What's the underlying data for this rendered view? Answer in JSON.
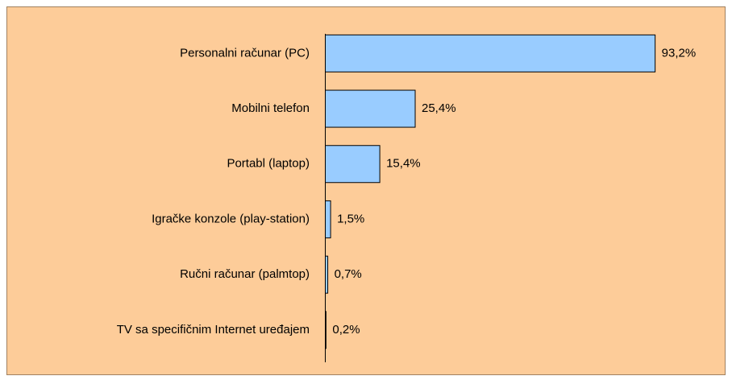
{
  "chart_data": {
    "type": "bar",
    "orientation": "horizontal",
    "categories": [
      "Personalni računar (PC)",
      "Mobilni telefon",
      "Portabl (laptop)",
      "Igračke konzole (play-station)",
      "Ručni računar (palmtop)",
      "TV sa specifičnim Internet uređajem"
    ],
    "values": [
      93.2,
      25.4,
      15.4,
      1.5,
      0.7,
      0.2
    ],
    "value_labels": [
      "93,2%",
      "25,4%",
      "15,4%",
      "1,5%",
      "0,7%",
      "0,2%"
    ],
    "color": "#99ccff",
    "background": "#fdcc99"
  }
}
